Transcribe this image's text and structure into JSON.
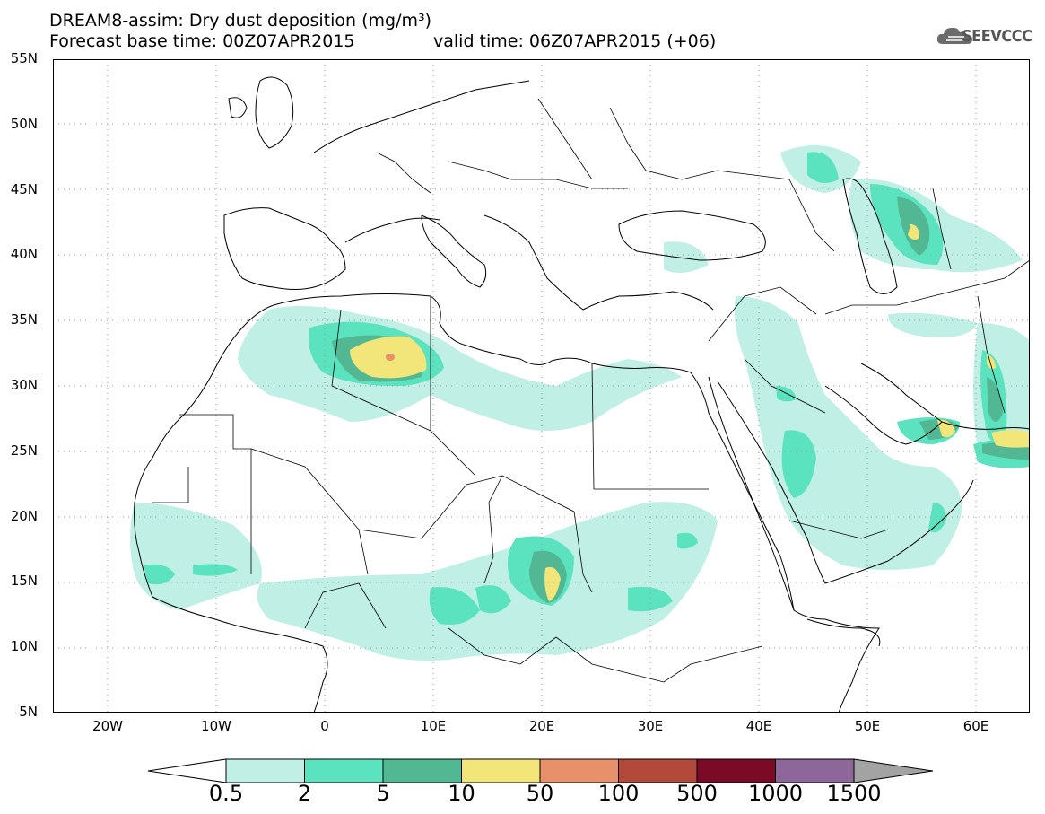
{
  "header": {
    "title_line1": "DREAM8-assim: Dry dust deposition (mg/m³)",
    "title_line2a": "Forecast base time: 00Z07APR2015",
    "title_line2b": "valid time: 06Z07APR2015 (+06)",
    "logo_text": "SEEVCCC"
  },
  "map": {
    "lat_labels": [
      "55N",
      "50N",
      "45N",
      "40N",
      "35N",
      "30N",
      "25N",
      "20N",
      "15N",
      "10N",
      "5N"
    ],
    "lon_labels": [
      "20W",
      "10W",
      "0",
      "10E",
      "20E",
      "30E",
      "40E",
      "50E",
      "60E"
    ],
    "lon_range": [
      -25,
      65
    ],
    "lat_range": [
      5,
      55
    ]
  },
  "colorbar": {
    "labels": [
      "0.5",
      "2",
      "5",
      "10",
      "50",
      "100",
      "500",
      "1000",
      "1500"
    ],
    "colors": [
      "#c0efe6",
      "#5be2be",
      "#52b893",
      "#f2e67a",
      "#e8906a",
      "#b2493a",
      "#7a0a26",
      "#8d6799",
      "#a3a3a3"
    ]
  },
  "legend_colors": {
    "c1": "#c0efe6",
    "c2": "#5be2be",
    "c3": "#52b893",
    "c4": "#f2e67a",
    "c5": "#e8906a"
  }
}
